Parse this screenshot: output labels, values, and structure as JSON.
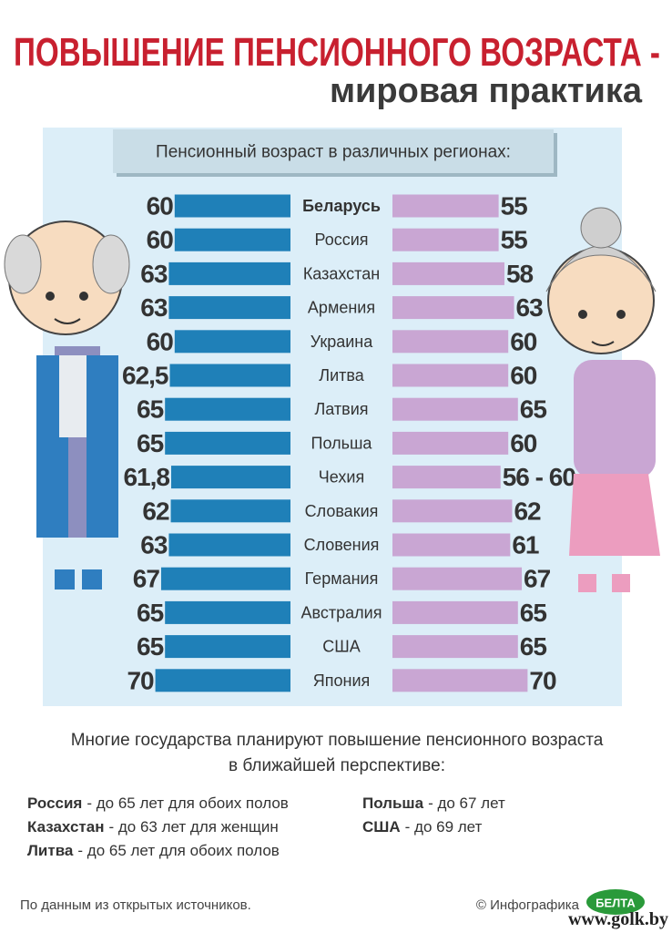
{
  "title": "ПОВЫШЕНИЕ ПЕНСИОННОГО ВОЗРАСТА -",
  "subtitle": "мировая практика",
  "chart_data": {
    "type": "butterfly",
    "title": "Пенсионный возраст в различных регионах:",
    "categories": [
      "Беларусь",
      "Россия",
      "Казахстан",
      "Армения",
      "Украина",
      "Литва",
      "Латвия",
      "Польша",
      "Чехия",
      "Словакия",
      "Словения",
      "Германия",
      "Австралия",
      "США",
      "Япония"
    ],
    "series": [
      {
        "color": "#1f80b8",
        "values": [
          60,
          60,
          63,
          63,
          60,
          62.5,
          65,
          65,
          61.8,
          62,
          63,
          67,
          65,
          65,
          70
        ],
        "value_labels": [
          null,
          null,
          null,
          null,
          null,
          "62,5",
          null,
          null,
          "61,8",
          null,
          null,
          null,
          null,
          null,
          null
        ]
      },
      {
        "color": "#c9a6d3",
        "values": [
          55,
          55,
          58,
          63,
          60,
          60,
          65,
          60,
          56,
          62,
          61,
          67,
          65,
          65,
          70
        ],
        "value_labels": [
          null,
          null,
          null,
          null,
          null,
          null,
          null,
          null,
          "56 - 60",
          null,
          null,
          null,
          null,
          null,
          null
        ]
      }
    ]
  },
  "plans": {
    "intro": [
      "Многие государства планируют повышение пенсионного возраста",
      "в ближайшей перспективе:"
    ],
    "items": [
      {
        "country": "Россия",
        "text": "- до 65 лет для обоих полов"
      },
      {
        "country": "Казахстан",
        "text": "- до 63 лет для женщин"
      },
      {
        "country": "Литва",
        "text": "- до 65 лет для обоих полов"
      },
      {
        "country": "Польша",
        "text": "- до 67 лет"
      },
      {
        "country": "США",
        "text": "- до 69 лет"
      }
    ]
  },
  "footer": {
    "source": "По данным из открытых источников.",
    "credit": "© Инфографика",
    "logo": "БЕЛТА",
    "watermark": "www.golk.by"
  }
}
